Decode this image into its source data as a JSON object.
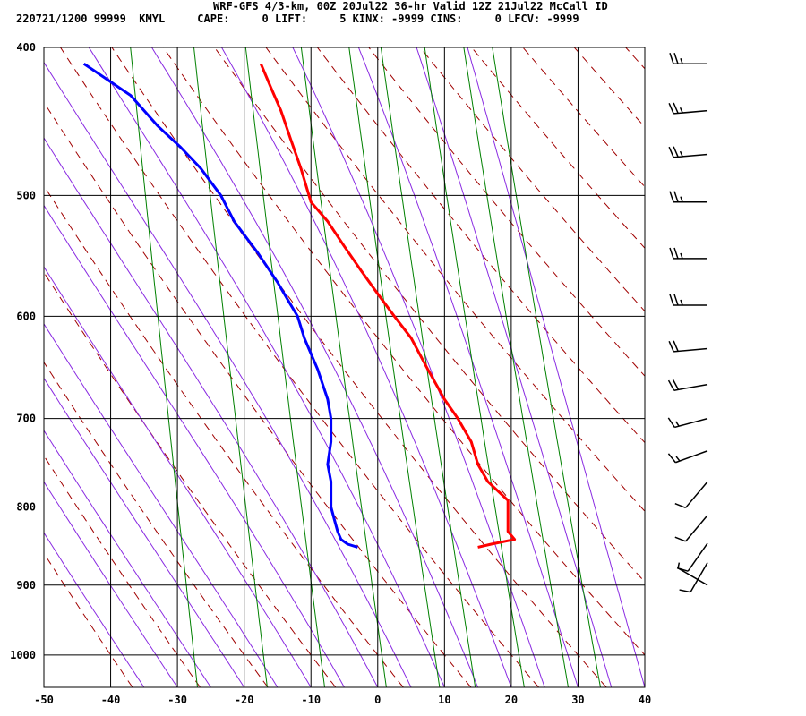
{
  "header": {
    "line1": "WRF-GFS 4/3-km, 00Z 20Jul22 36-hr Valid 12Z 21Jul22 McCall ID",
    "line2": "220721/1200 99999  KMYL     CAPE:     0 LIFT:     5 KINX: -9999 CINS:     0 LFCV: -9999"
  },
  "colors": {
    "temperature": "#ff0000",
    "dewpoint": "#0000ff",
    "dry_adiabat": "#a00000",
    "moist_adiabat": "#8a2be2",
    "mixing_ratio": "#008000",
    "grid": "#000000"
  },
  "chart_data": {
    "type": "line",
    "subtype": "skew-T log-P sounding",
    "xlabel": "",
    "ylabel": "",
    "x_ticks": [
      -50,
      -40,
      -30,
      -20,
      -10,
      0,
      10,
      20,
      30,
      40
    ],
    "y_ticks": [
      400,
      500,
      600,
      700,
      800,
      900,
      1000
    ],
    "xlim": [
      -50,
      40
    ],
    "ylim": [
      1050,
      400
    ],
    "y_scale": "log",
    "grid": true,
    "series": [
      {
        "key": "temperature",
        "pressure": [
          850,
          846,
          840,
          830,
          815,
          800,
          792,
          770,
          750,
          725,
          700,
          680,
          650,
          620,
          600,
          580,
          560,
          540,
          520,
          505,
          480,
          460,
          440,
          425,
          410
        ],
        "values": [
          15.0,
          17.0,
          20.5,
          19.5,
          19.5,
          19.5,
          19.5,
          16.5,
          15.0,
          14.0,
          12.0,
          10.0,
          7.5,
          5.0,
          2.5,
          0.0,
          -2.5,
          -5.0,
          -7.5,
          -10.0,
          -11.5,
          -13.0,
          -14.5,
          -16.0,
          -17.5
        ]
      },
      {
        "key": "dewpoint",
        "pressure": [
          850,
          846,
          840,
          830,
          815,
          800,
          790,
          770,
          750,
          725,
          700,
          680,
          650,
          620,
          600,
          585,
          570,
          545,
          520,
          500,
          480,
          465,
          450,
          430,
          410
        ],
        "values": [
          -3.0,
          -4.5,
          -5.5,
          -6.0,
          -6.5,
          -7.0,
          -7.0,
          -7.0,
          -7.5,
          -7.0,
          -7.0,
          -7.5,
          -9.0,
          -11.0,
          -12.0,
          -13.5,
          -15.0,
          -18.0,
          -21.5,
          -23.5,
          -26.5,
          -29.5,
          -33.0,
          -37.0,
          -44.0
        ]
      }
    ],
    "wind_barbs": [
      {
        "pressure": 410,
        "direction": 270,
        "speed": 25
      },
      {
        "pressure": 440,
        "direction": 265,
        "speed": 25
      },
      {
        "pressure": 470,
        "direction": 265,
        "speed": 25
      },
      {
        "pressure": 505,
        "direction": 270,
        "speed": 25
      },
      {
        "pressure": 550,
        "direction": 270,
        "speed": 25
      },
      {
        "pressure": 590,
        "direction": 270,
        "speed": 25
      },
      {
        "pressure": 630,
        "direction": 265,
        "speed": 20
      },
      {
        "pressure": 665,
        "direction": 260,
        "speed": 20
      },
      {
        "pressure": 700,
        "direction": 255,
        "speed": 15
      },
      {
        "pressure": 735,
        "direction": 250,
        "speed": 15
      },
      {
        "pressure": 770,
        "direction": 220,
        "speed": 10
      },
      {
        "pressure": 810,
        "direction": 220,
        "speed": 10
      },
      {
        "pressure": 845,
        "direction": 215,
        "speed": 10
      },
      {
        "pressure": 870,
        "direction": 210,
        "speed": 10
      },
      {
        "pressure": 900,
        "direction": 300,
        "speed": 5
      }
    ]
  }
}
